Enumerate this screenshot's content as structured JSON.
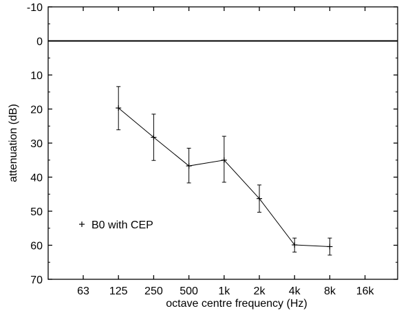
{
  "chart_data": {
    "type": "line",
    "xlabel": "octave centre frequency (Hz)",
    "ylabel": "attenuation (dB)",
    "categories": [
      "63",
      "125",
      "250",
      "500",
      "1k",
      "2k",
      "4k",
      "8k",
      "16k"
    ],
    "ylim": [
      -10,
      70
    ],
    "y_axis_inverted": true,
    "y_ticks": [
      -10,
      0,
      10,
      20,
      30,
      40,
      50,
      60,
      70
    ],
    "grid": false,
    "reference_line": {
      "y": 0
    },
    "legend": {
      "placement": "lower-left"
    },
    "series": [
      {
        "name": "B0 with CEP",
        "marker": "+",
        "color": "#000000",
        "points": [
          {
            "x": "125",
            "y": 19.7,
            "err_low": 13.4,
            "err_high": 26.1
          },
          {
            "x": "250",
            "y": 28.3,
            "err_low": 21.5,
            "err_high": 35.1
          },
          {
            "x": "500",
            "y": 36.7,
            "err_low": 31.5,
            "err_high": 41.7
          },
          {
            "x": "1k",
            "y": 35.0,
            "err_low": 28.0,
            "err_high": 41.5
          },
          {
            "x": "2k",
            "y": 46.3,
            "err_low": 42.3,
            "err_high": 50.3
          },
          {
            "x": "4k",
            "y": 59.9,
            "err_low": 57.9,
            "err_high": 62.0
          },
          {
            "x": "8k",
            "y": 60.4,
            "err_low": 57.9,
            "err_high": 62.9
          }
        ]
      }
    ]
  }
}
